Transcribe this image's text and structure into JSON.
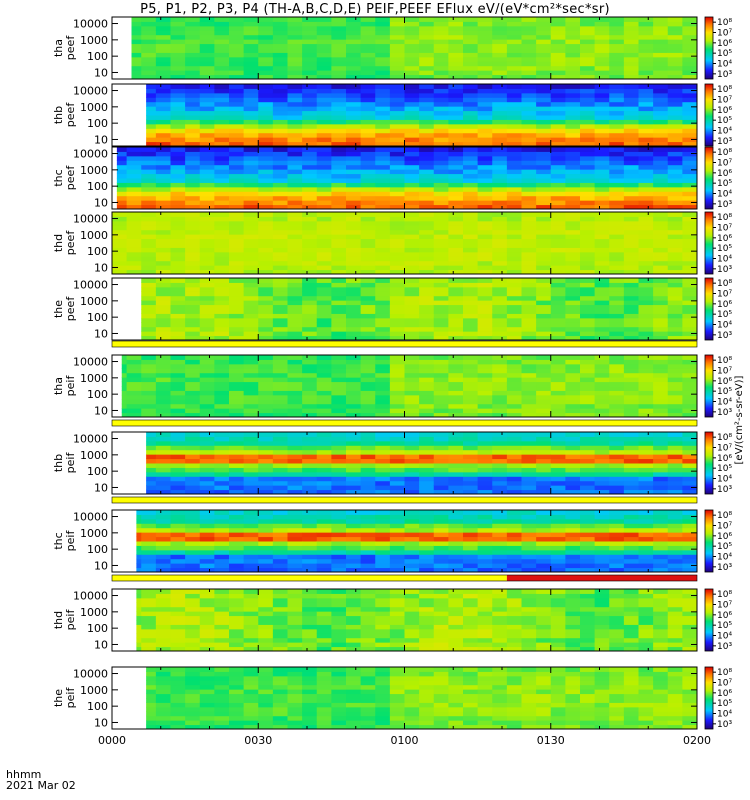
{
  "title": "P5, P1, P2, P3, P4 (TH-A,B,C,D,E) PEIF,PEEF EFlux eV/(eV*cm²*sec*sr)",
  "corner_label_1": "hhmm",
  "corner_label_2": "2021 Mar 02",
  "colorbar_title": "[eV/(cm²-s-sr-eV)]",
  "colorbar_ticks": [
    "10³",
    "10⁴",
    "10⁵",
    "10⁶",
    "10⁷",
    "10⁸"
  ],
  "colors": {
    "strip_yellow": "#ffff00",
    "strip_red": "#dd1111",
    "axis": "#000000"
  },
  "chart_data": {
    "type": "heatmap",
    "x_ticks": [
      "0000",
      "0030",
      "0100",
      "0130",
      "0200"
    ],
    "x_range_minutes": [
      0,
      120
    ],
    "y_scale": "log",
    "y_ticks": [
      "10",
      "100",
      "1000",
      "10000"
    ],
    "panels": [
      {
        "id": "tha_peef",
        "ylabel": [
          "tha",
          "peef"
        ],
        "data_start_min": 4,
        "profile": "flat_green"
      },
      {
        "id": "thb_peef",
        "ylabel": [
          "thb",
          "peef"
        ],
        "data_start_min": 7,
        "profile": "low_red_high_blue"
      },
      {
        "id": "thc_peef",
        "ylabel": [
          "thc",
          "peef"
        ],
        "data_start_min": 1,
        "profile": "low_red_high_blue"
      },
      {
        "id": "thd_peef",
        "ylabel": [
          "thd",
          "peef"
        ],
        "data_start_min": 0,
        "profile": "flat_yellow"
      },
      {
        "id": "the_peef",
        "ylabel": [
          "the",
          "peef"
        ],
        "data_start_min": 6,
        "profile": "flat_yellow_green"
      },
      {
        "id": "tha_peif",
        "ylabel": [
          "tha",
          "peif"
        ],
        "data_start_min": 2,
        "profile": "flat_green"
      },
      {
        "id": "thb_peif",
        "ylabel": [
          "thb",
          "peif"
        ],
        "data_start_min": 7,
        "profile": "mid_red"
      },
      {
        "id": "thc_peif",
        "ylabel": [
          "thc",
          "peif"
        ],
        "data_start_min": 5,
        "profile": "mid_red"
      },
      {
        "id": "thd_peif",
        "ylabel": [
          "thd",
          "peif"
        ],
        "data_start_min": 5,
        "profile": "flat_yellow_green"
      },
      {
        "id": "the_peif",
        "ylabel": [
          "the",
          "peif"
        ],
        "data_start_min": 7,
        "profile": "flat_green"
      }
    ],
    "mode_strips": [
      {
        "after_panel": "the_peef",
        "segments": [
          {
            "start_min": 0,
            "end_min": 120,
            "color": "yellow"
          }
        ]
      },
      {
        "after_panel": "tha_peif",
        "segments": [
          {
            "start_min": 0,
            "end_min": 120,
            "color": "yellow"
          }
        ]
      },
      {
        "after_panel": "thc_peif",
        "segments": [
          {
            "start_min": 0,
            "end_min": 120,
            "color": "yellow"
          }
        ]
      },
      {
        "after_panel": "thd_peif",
        "segments": [
          {
            "start_min": 0,
            "end_min": 81,
            "color": "yellow"
          },
          {
            "start_min": 81,
            "end_min": 120,
            "color": "red"
          }
        ]
      }
    ]
  }
}
